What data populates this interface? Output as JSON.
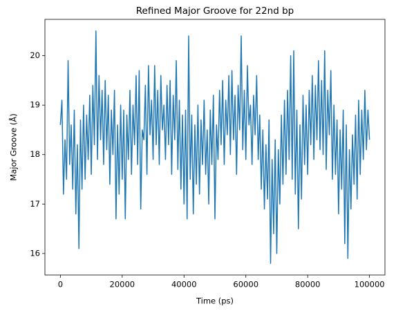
{
  "chart_data": {
    "type": "line",
    "title": "Refined Major Groove for 22nd bp",
    "x_label": "Time (ps)",
    "y_label": "Major Groove (Å)",
    "x": [
      0,
      500,
      1000,
      1500,
      2000,
      2500,
      3000,
      3500,
      4000,
      4500,
      5000,
      5500,
      6000,
      6500,
      7000,
      7500,
      8000,
      8500,
      9000,
      9500,
      10000,
      10500,
      11000,
      11500,
      12000,
      12500,
      13000,
      13500,
      14000,
      14500,
      15000,
      15500,
      16000,
      16500,
      17000,
      17500,
      18000,
      18500,
      19000,
      19500,
      20000,
      20500,
      21000,
      21500,
      22000,
      22500,
      23000,
      23500,
      24000,
      24500,
      25000,
      25500,
      26000,
      26500,
      27000,
      27500,
      28000,
      28500,
      29000,
      29500,
      30000,
      30500,
      31000,
      31500,
      32000,
      32500,
      33000,
      33500,
      34000,
      34500,
      35000,
      35500,
      36000,
      36500,
      37000,
      37500,
      38000,
      38500,
      39000,
      39500,
      40000,
      40500,
      41000,
      41500,
      42000,
      42500,
      43000,
      43500,
      44000,
      44500,
      45000,
      45500,
      46000,
      46500,
      47000,
      47500,
      48000,
      48500,
      49000,
      49500,
      50000,
      50500,
      51000,
      51500,
      52000,
      52500,
      53000,
      53500,
      54000,
      54500,
      55000,
      55500,
      56000,
      56500,
      57000,
      57500,
      58000,
      58500,
      59000,
      59500,
      60000,
      60500,
      61000,
      61500,
      62000,
      62500,
      63000,
      63500,
      64000,
      64500,
      65000,
      65500,
      66000,
      66500,
      67000,
      67500,
      68000,
      68500,
      69000,
      69500,
      70000,
      70500,
      71000,
      71500,
      72000,
      72500,
      73000,
      73500,
      74000,
      74500,
      75000,
      75500,
      76000,
      76500,
      77000,
      77500,
      78000,
      78500,
      79000,
      79500,
      80000,
      80500,
      81000,
      81500,
      82000,
      82500,
      83000,
      83500,
      84000,
      84500,
      85000,
      85500,
      86000,
      86500,
      87000,
      87500,
      88000,
      88500,
      89000,
      89500,
      90000,
      90500,
      91000,
      91500,
      92000,
      92500,
      93000,
      93500,
      94000,
      94500,
      95000,
      95500,
      96000,
      96500,
      97000,
      97500,
      98000,
      98500,
      99000,
      99500,
      100000
    ],
    "series": [
      {
        "name": "Major Groove",
        "color": "#1f77b4",
        "values": [
          18.6,
          19.1,
          17.2,
          18.3,
          17.5,
          19.9,
          17.8,
          18.6,
          17.3,
          18.9,
          16.8,
          18.2,
          16.1,
          18.7,
          17.3,
          19.0,
          17.5,
          18.8,
          17.9,
          19.2,
          17.6,
          19.4,
          18.2,
          20.5,
          17.9,
          19.6,
          18.3,
          19.3,
          17.8,
          19.5,
          18.1,
          19.2,
          17.4,
          18.9,
          18.0,
          19.3,
          16.7,
          18.6,
          17.2,
          19.0,
          17.5,
          18.9,
          16.7,
          18.8,
          17.9,
          19.3,
          17.6,
          19.0,
          18.2,
          19.6,
          17.8,
          19.7,
          16.9,
          18.5,
          18.3,
          19.4,
          17.6,
          19.8,
          18.4,
          19.1,
          17.9,
          19.8,
          18.2,
          19.3,
          17.8,
          19.6,
          18.5,
          19.0,
          17.9,
          19.4,
          18.2,
          19.5,
          17.6,
          19.2,
          18.3,
          19.9,
          17.7,
          19.1,
          17.3,
          18.8,
          17.0,
          18.9,
          16.7,
          20.4,
          17.5,
          18.8,
          16.8,
          18.6,
          17.4,
          19.0,
          17.2,
          18.7,
          17.8,
          19.1,
          17.6,
          18.5,
          17.0,
          18.9,
          17.8,
          19.2,
          16.7,
          18.6,
          17.9,
          19.3,
          18.2,
          19.5,
          17.8,
          19.1,
          18.4,
          19.6,
          18.0,
          19.7,
          18.3,
          19.2,
          17.6,
          19.4,
          18.5,
          20.4,
          18.1,
          19.3,
          17.9,
          19.8,
          18.6,
          19.0,
          17.8,
          19.2,
          18.4,
          19.6,
          17.9,
          18.8,
          17.3,
          18.5,
          16.9,
          18.2,
          17.1,
          18.7,
          15.8,
          17.9,
          16.4,
          18.3,
          16.0,
          18.1,
          17.0,
          18.8,
          17.4,
          19.1,
          17.6,
          19.3,
          17.9,
          20.0,
          17.5,
          20.1,
          17.2,
          18.9,
          16.5,
          18.6,
          17.1,
          19.2,
          17.8,
          19.0,
          17.6,
          19.3,
          18.2,
          19.6,
          17.9,
          19.4,
          18.3,
          19.9,
          18.1,
          19.5,
          18.0,
          20.1,
          17.7,
          19.3,
          18.4,
          19.7,
          17.5,
          19.0,
          17.6,
          18.7,
          16.8,
          18.5,
          17.3,
          18.9,
          16.2,
          18.6,
          15.9,
          18.1,
          16.9,
          18.4,
          17.4,
          18.8,
          17.1,
          19.1,
          17.6,
          18.9,
          17.9,
          19.3,
          18.1,
          18.9,
          18.3
        ]
      }
    ],
    "xlim": [
      -5000,
      105000
    ],
    "ylim": [
      15.565,
      20.735
    ],
    "xticks": [
      0,
      20000,
      40000,
      60000,
      80000,
      100000
    ],
    "yticks": [
      16,
      17,
      18,
      19,
      20
    ]
  }
}
